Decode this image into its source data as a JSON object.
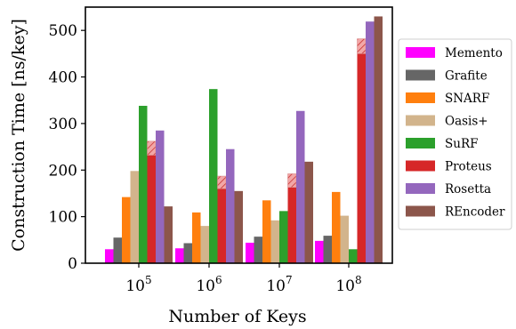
{
  "chart_data": {
    "type": "bar",
    "xlabel": "Number of Keys",
    "ylabel": "Construction Time [ns/key]",
    "ylim": [
      0,
      550
    ],
    "yticks": [
      0,
      100,
      200,
      300,
      400,
      500
    ],
    "categories": [
      {
        "base": "10",
        "exp": "5"
      },
      {
        "base": "10",
        "exp": "6"
      },
      {
        "base": "10",
        "exp": "7"
      },
      {
        "base": "10",
        "exp": "8"
      }
    ],
    "legend_position": "right",
    "series": [
      {
        "name": "Memento",
        "color": "#ff00ff",
        "values": [
          30,
          32,
          44,
          48
        ]
      },
      {
        "name": "Grafite",
        "color": "#666666",
        "values": [
          55,
          43,
          57,
          59
        ]
      },
      {
        "name": "SNARF",
        "color": "#ff7f0e",
        "values": [
          142,
          109,
          135,
          153
        ]
      },
      {
        "name": "Oasis+",
        "color": "#d2b48c",
        "values": [
          198,
          80,
          92,
          102
        ]
      },
      {
        "name": "SuRF",
        "color": "#2ca02c",
        "values": [
          338,
          374,
          112,
          30
        ]
      },
      {
        "name": "Proteus",
        "color": "#d62728",
        "values": [
          232,
          160,
          163,
          450
        ],
        "hatched_top": [
          262,
          187,
          192,
          482
        ]
      },
      {
        "name": "Rosetta",
        "color": "#9467bd",
        "values": [
          285,
          245,
          327,
          519
        ]
      },
      {
        "name": "REncoder",
        "color": "#8c564b",
        "values": [
          122,
          155,
          218,
          530
        ]
      }
    ]
  }
}
